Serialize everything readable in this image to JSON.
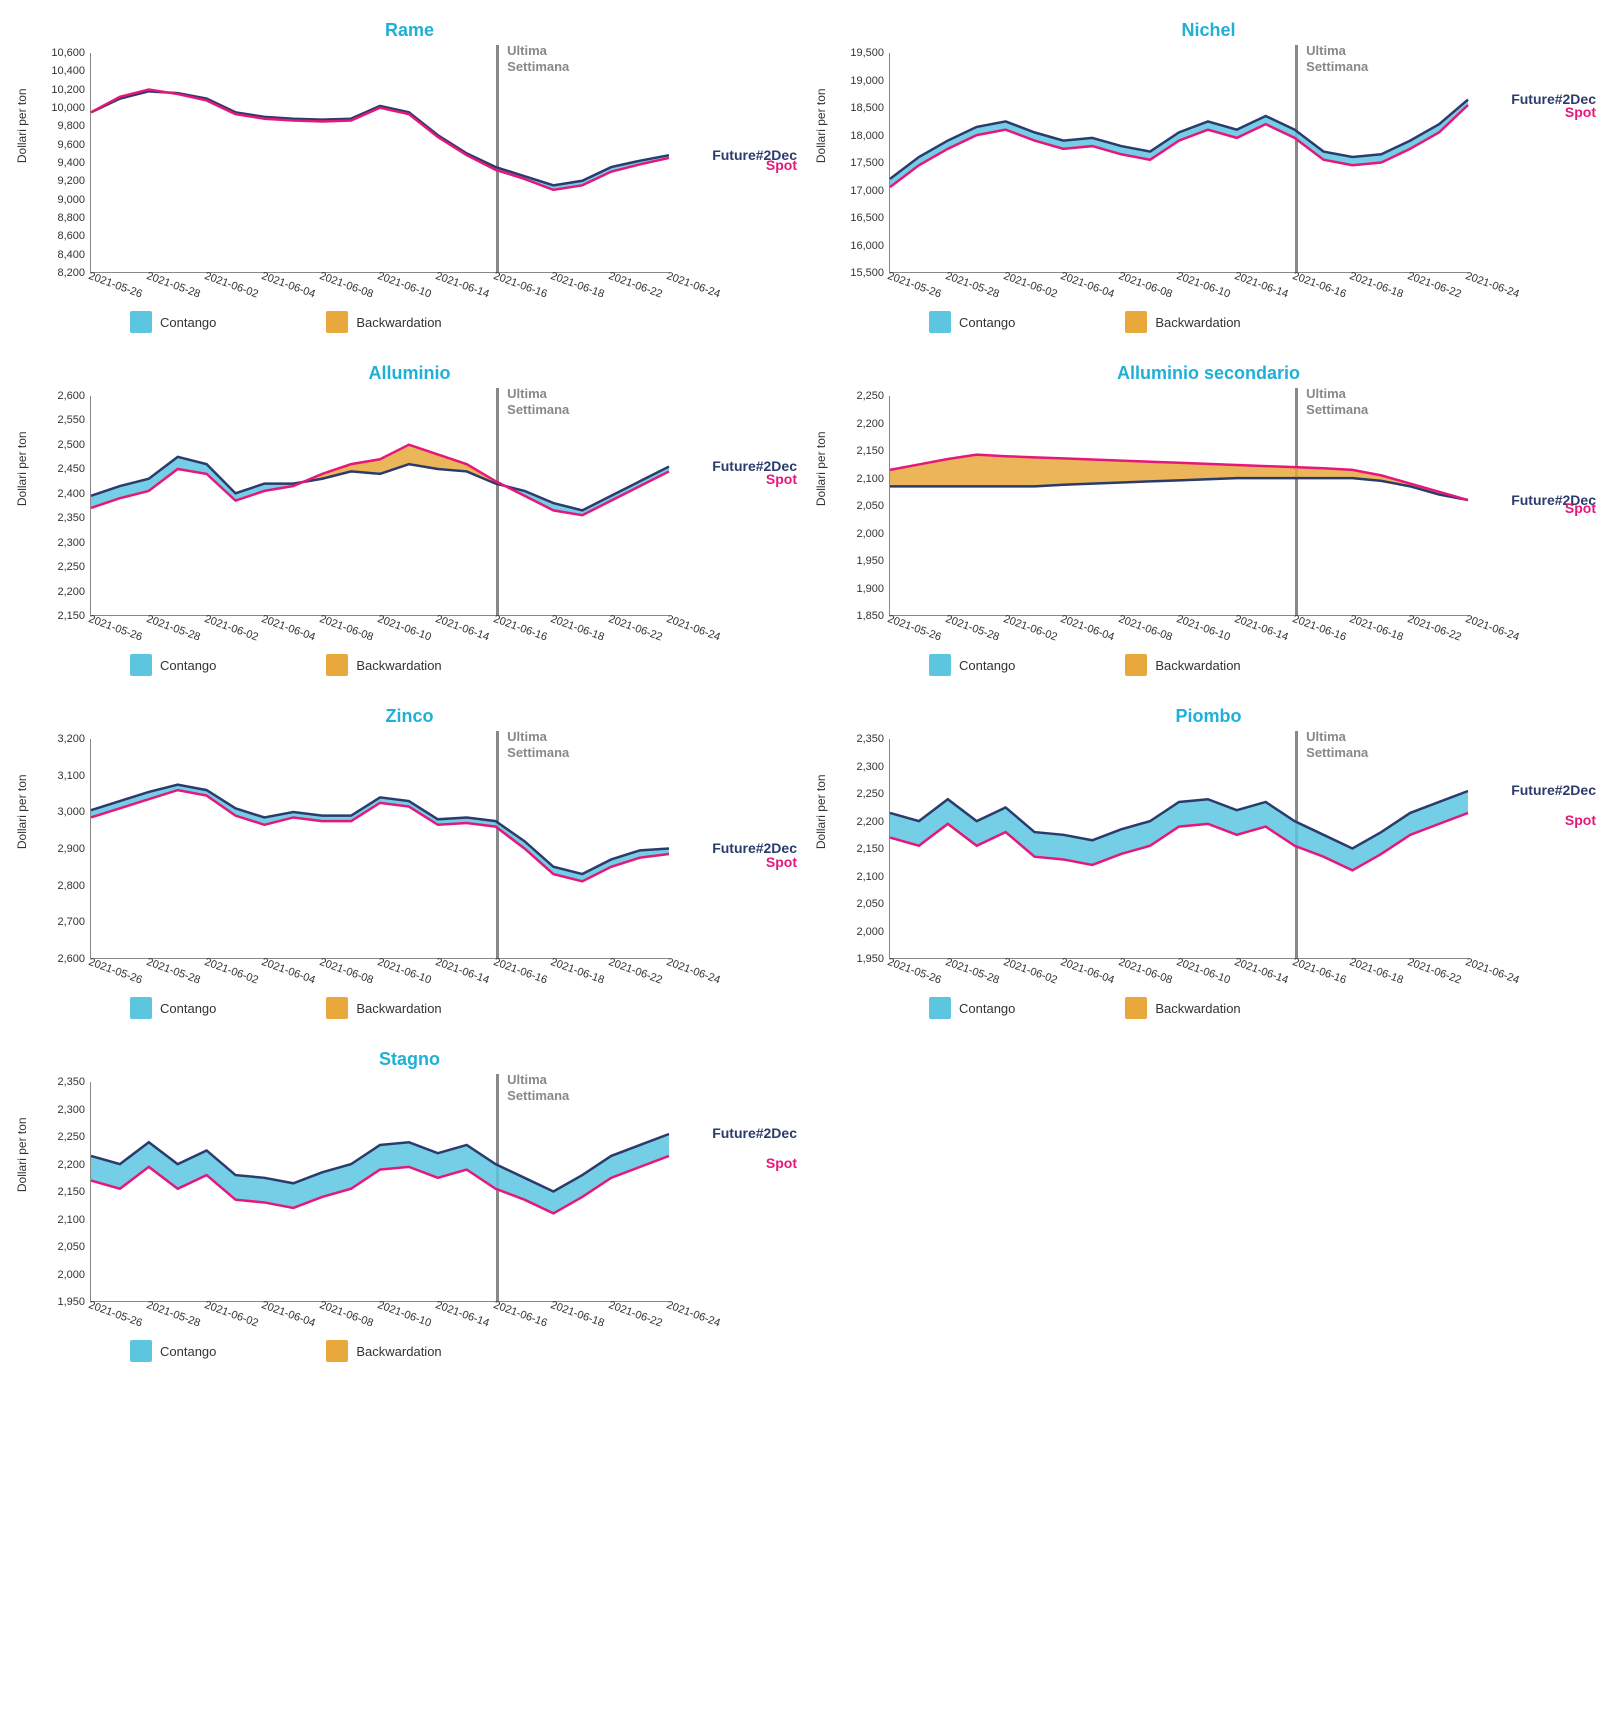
{
  "colors": {
    "title": "#1eb0d6",
    "future_line": "#2b3b6c",
    "spot_line": "#e6177a",
    "contango_fill": "#5cc6e0",
    "backwardation_fill": "#e8a83c",
    "vline": "#888888",
    "annotation": "#888888",
    "axis": "#333333",
    "background": "#ffffff"
  },
  "title_fontsize": 18,
  "ylabel_fontsize": 12,
  "tick_fontsize": 11,
  "series_label_fontsize": 14,
  "line_width": 2.5,
  "common": {
    "ylabel": "Dollari per ton",
    "xticks": [
      "2021-05-26",
      "2021-05-28",
      "2021-06-02",
      "2021-06-04",
      "2021-06-08",
      "2021-06-10",
      "2021-06-14",
      "2021-06-16",
      "2021-06-18",
      "2021-06-22",
      "2021-06-24"
    ],
    "annotation_text": "Ultima Settimana",
    "vline_index": 14,
    "legend": {
      "contango": "Contango",
      "backwardation": "Backwardation"
    },
    "series_labels": {
      "future": "Future#2Dec",
      "spot": "Spot"
    },
    "n_points": 21
  },
  "charts": [
    {
      "title": "Rame",
      "ylim": [
        8200,
        10600
      ],
      "ytick_step": 200,
      "future": [
        9950,
        10100,
        10180,
        10160,
        10100,
        9950,
        9900,
        9880,
        9870,
        9880,
        10020,
        9950,
        9700,
        9500,
        9350,
        9250,
        9150,
        9200,
        9350,
        9420,
        9480
      ],
      "spot": [
        9950,
        10120,
        10200,
        10150,
        10080,
        9930,
        9880,
        9860,
        9850,
        9860,
        10000,
        9930,
        9680,
        9480,
        9320,
        9220,
        9100,
        9150,
        9300,
        9380,
        9450
      ]
    },
    {
      "title": "Nichel",
      "ylim": [
        15500,
        19500
      ],
      "ytick_step": 500,
      "future": [
        17200,
        17600,
        17900,
        18150,
        18250,
        18050,
        17900,
        17950,
        17800,
        17700,
        18050,
        18250,
        18100,
        18350,
        18100,
        17700,
        17600,
        17650,
        17900,
        18200,
        18650
      ],
      "spot": [
        17050,
        17450,
        17750,
        18000,
        18100,
        17900,
        17750,
        17800,
        17650,
        17550,
        17900,
        18100,
        17950,
        18200,
        17950,
        17550,
        17450,
        17500,
        17750,
        18050,
        18550
      ]
    },
    {
      "title": "Alluminio",
      "ylim": [
        2150,
        2600
      ],
      "ytick_step": 50,
      "future": [
        2395,
        2415,
        2430,
        2475,
        2460,
        2400,
        2420,
        2420,
        2430,
        2445,
        2440,
        2460,
        2450,
        2445,
        2420,
        2405,
        2380,
        2365,
        2395,
        2425,
        2455
      ],
      "spot": [
        2370,
        2390,
        2405,
        2450,
        2440,
        2385,
        2405,
        2415,
        2440,
        2460,
        2470,
        2500,
        2480,
        2460,
        2425,
        2395,
        2365,
        2355,
        2385,
        2415,
        2445
      ]
    },
    {
      "title": "Alluminio secondario",
      "ylim": [
        1850,
        2250
      ],
      "ytick_step": 50,
      "future": [
        2085,
        2085,
        2085,
        2085,
        2085,
        2085,
        2088,
        2090,
        2092,
        2094,
        2096,
        2098,
        2100,
        2100,
        2100,
        2100,
        2100,
        2095,
        2085,
        2070,
        2060
      ],
      "spot": [
        2115,
        2125,
        2135,
        2143,
        2140,
        2138,
        2136,
        2134,
        2132,
        2130,
        2128,
        2126,
        2124,
        2122,
        2120,
        2118,
        2115,
        2105,
        2090,
        2075,
        2060
      ]
    },
    {
      "title": "Zinco",
      "ylim": [
        2600,
        3200
      ],
      "ytick_step": 100,
      "future": [
        3005,
        3030,
        3055,
        3075,
        3060,
        3010,
        2985,
        3000,
        2990,
        2990,
        3040,
        3030,
        2980,
        2985,
        2975,
        2920,
        2850,
        2830,
        2870,
        2895,
        2900
      ],
      "spot": [
        2985,
        3010,
        3035,
        3060,
        3045,
        2990,
        2965,
        2985,
        2975,
        2975,
        3025,
        3015,
        2965,
        2970,
        2960,
        2900,
        2830,
        2810,
        2850,
        2875,
        2885
      ]
    },
    {
      "title": "Piombo",
      "ylim": [
        1950,
        2350
      ],
      "ytick_step": 50,
      "future": [
        2215,
        2200,
        2240,
        2200,
        2225,
        2180,
        2175,
        2165,
        2185,
        2200,
        2235,
        2240,
        2220,
        2235,
        2200,
        2175,
        2150,
        2180,
        2215,
        2235,
        2255
      ],
      "spot": [
        2170,
        2155,
        2195,
        2155,
        2180,
        2135,
        2130,
        2120,
        2140,
        2155,
        2190,
        2195,
        2175,
        2190,
        2155,
        2135,
        2110,
        2140,
        2175,
        2195,
        2215
      ]
    },
    {
      "title": "Stagno",
      "ylim": [
        1950,
        2350
      ],
      "ytick_step": 50,
      "future": [
        2215,
        2200,
        2240,
        2200,
        2225,
        2180,
        2175,
        2165,
        2185,
        2200,
        2235,
        2240,
        2220,
        2235,
        2200,
        2175,
        2150,
        2180,
        2215,
        2235,
        2255
      ],
      "spot": [
        2170,
        2155,
        2195,
        2155,
        2180,
        2135,
        2130,
        2120,
        2140,
        2155,
        2190,
        2195,
        2175,
        2190,
        2155,
        2135,
        2110,
        2140,
        2175,
        2195,
        2215
      ]
    }
  ]
}
